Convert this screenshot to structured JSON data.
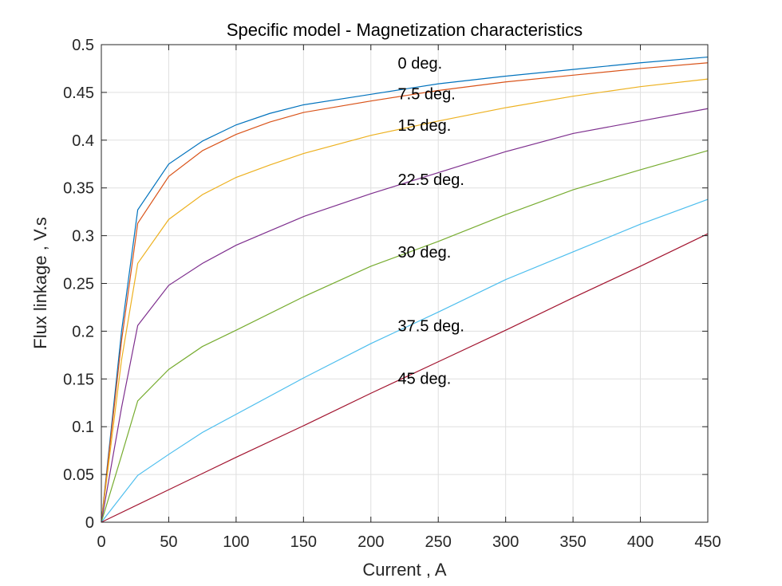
{
  "chart_data": {
    "type": "line",
    "title": "Specific model - Magnetization characteristics",
    "xlabel": "Current , A",
    "ylabel": "Flux linkage , V.s",
    "xlim": [
      0,
      450
    ],
    "ylim": [
      0,
      0.5
    ],
    "grid": true,
    "xticks": [
      "0",
      "50",
      "100",
      "150",
      "200",
      "250",
      "300",
      "350",
      "400",
      "450"
    ],
    "yticks": [
      "0",
      "0.05",
      "0.1",
      "0.15",
      "0.2",
      "0.25",
      "0.3",
      "0.35",
      "0.4",
      "0.45",
      "0.5"
    ],
    "series": [
      {
        "color": "#0072BD",
        "x": [
          0,
          15,
          27,
          50,
          75,
          100,
          125,
          150,
          200,
          250,
          300,
          350,
          400,
          450
        ],
        "y": [
          0,
          0.2,
          0.327,
          0.375,
          0.399,
          0.416,
          0.428,
          0.437,
          0.448,
          0.459,
          0.467,
          0.474,
          0.481,
          0.487
        ]
      },
      {
        "color": "#D95319",
        "x": [
          0,
          15,
          27,
          50,
          75,
          100,
          125,
          150,
          200,
          250,
          300,
          350,
          400,
          450
        ],
        "y": [
          0,
          0.19,
          0.313,
          0.362,
          0.389,
          0.406,
          0.419,
          0.429,
          0.441,
          0.452,
          0.461,
          0.468,
          0.475,
          0.481
        ]
      },
      {
        "color": "#EDB120",
        "x": [
          0,
          15,
          27,
          50,
          75,
          100,
          125,
          150,
          200,
          250,
          300,
          350,
          400,
          450
        ],
        "y": [
          0,
          0.17,
          0.271,
          0.317,
          0.343,
          0.361,
          0.374,
          0.386,
          0.405,
          0.42,
          0.434,
          0.446,
          0.456,
          0.464
        ]
      },
      {
        "color": "#7E2F8E",
        "x": [
          0,
          15,
          27,
          50,
          75,
          100,
          125,
          150,
          200,
          250,
          300,
          350,
          400,
          450
        ],
        "y": [
          0,
          0.12,
          0.206,
          0.248,
          0.271,
          0.29,
          0.305,
          0.32,
          0.344,
          0.366,
          0.388,
          0.407,
          0.42,
          0.433
        ]
      },
      {
        "color": "#77AC30",
        "x": [
          0,
          15,
          27,
          50,
          75,
          100,
          150,
          200,
          250,
          300,
          350,
          400,
          450
        ],
        "y": [
          0,
          0.07,
          0.127,
          0.16,
          0.184,
          0.201,
          0.236,
          0.268,
          0.294,
          0.322,
          0.348,
          0.369,
          0.389
        ]
      },
      {
        "color": "#4DBEEE",
        "x": [
          0,
          27,
          50,
          75,
          100,
          150,
          200,
          250,
          300,
          350,
          400,
          450
        ],
        "y": [
          0,
          0.049,
          0.071,
          0.094,
          0.113,
          0.151,
          0.187,
          0.22,
          0.254,
          0.283,
          0.312,
          0.338
        ]
      },
      {
        "color": "#A2142F",
        "x": [
          0,
          50,
          100,
          150,
          200,
          250,
          300,
          350,
          400,
          450
        ],
        "y": [
          0,
          0.034,
          0.068,
          0.101,
          0.135,
          0.168,
          0.201,
          0.235,
          0.268,
          0.302
        ]
      }
    ],
    "annotations": [
      {
        "text": "0 deg.",
        "x": 220,
        "y": 0.475
      },
      {
        "text": "7.5 deg.",
        "x": 220,
        "y": 0.443
      },
      {
        "text": "15 deg.",
        "x": 220,
        "y": 0.41
      },
      {
        "text": "22.5 deg.",
        "x": 220,
        "y": 0.353
      },
      {
        "text": "30 deg.",
        "x": 220,
        "y": 0.277
      },
      {
        "text": "37.5 deg.",
        "x": 220,
        "y": 0.2
      },
      {
        "text": "45 deg.",
        "x": 220,
        "y": 0.145
      }
    ]
  }
}
